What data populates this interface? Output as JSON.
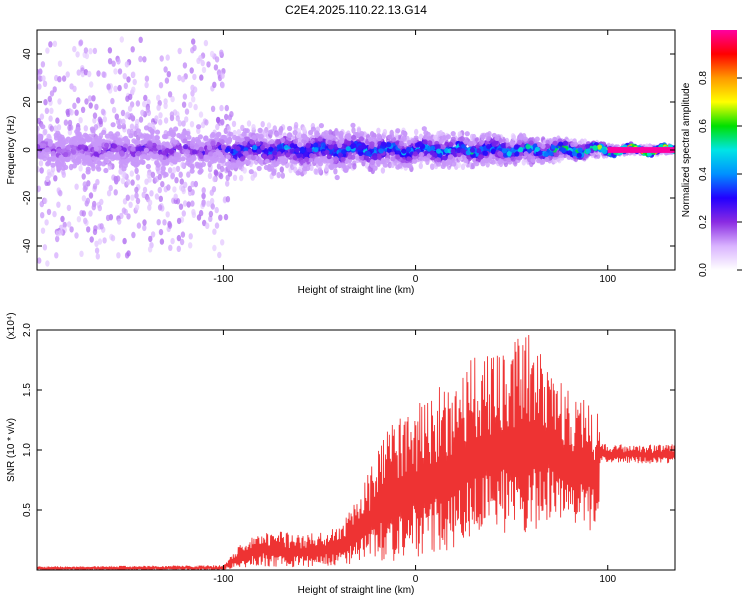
{
  "title": "C2E4.2025.110.22.13.G14",
  "chart_data": [
    {
      "type": "heatmap",
      "xlabel": "Height of straight line (km)",
      "ylabel": "Frequency (Hz)",
      "xlim": [
        -197,
        135
      ],
      "ylim": [
        -50,
        50
      ],
      "xticks": [
        -100,
        0,
        100
      ],
      "xtick_labels": [
        "-100",
        "0",
        "100"
      ],
      "yticks": [
        -40,
        -20,
        0,
        20,
        40
      ],
      "ytick_labels": [
        "-40",
        "-20",
        "0",
        "20",
        "40"
      ],
      "colorbar": {
        "label": "Normalized spectral amplitude",
        "range": [
          0,
          1
        ],
        "ticks": [
          0.0,
          0.2,
          0.4,
          0.6,
          0.8
        ],
        "tick_labels": [
          "0.0",
          "0.2",
          "0.4",
          "0.6",
          "0.8"
        ],
        "colors": [
          "#ffffff",
          "#d9b3ff",
          "#8a2be2",
          "#2200ff",
          "#0090ff",
          "#00e5e5",
          "#00e000",
          "#ffff00",
          "#ff9900",
          "#ff0000",
          "#ff00a0"
        ]
      },
      "profile": [
        {
          "x": -197,
          "spread_hz": 48,
          "core_amplitude": 0.25
        },
        {
          "x": -100,
          "spread_hz": 45,
          "core_amplitude": 0.3
        },
        {
          "x": -95,
          "spread_hz": 12,
          "core_amplitude": 0.45
        },
        {
          "x": -50,
          "spread_hz": 10,
          "core_amplitude": 0.5
        },
        {
          "x": 0,
          "spread_hz": 8,
          "core_amplitude": 0.55
        },
        {
          "x": 60,
          "spread_hz": 6,
          "core_amplitude": 0.6
        },
        {
          "x": 95,
          "spread_hz": 3,
          "core_amplitude": 0.8
        },
        {
          "x": 105,
          "spread_hz": 1.5,
          "core_amplitude": 1.0
        },
        {
          "x": 135,
          "spread_hz": 1.5,
          "core_amplitude": 1.0
        }
      ]
    },
    {
      "type": "line",
      "xlabel": "Height of straight line (km)",
      "ylabel": "SNR (10 * v/v)",
      "y_multiplier": "(x10⁴)",
      "xlim": [
        -197,
        135
      ],
      "ylim": [
        0,
        2.0
      ],
      "xticks": [
        -100,
        0,
        100
      ],
      "xtick_labels": [
        "-100",
        "0",
        "100"
      ],
      "yticks": [
        0.5,
        1.0,
        1.5,
        2.0
      ],
      "ytick_labels": [
        "0.5",
        "1.0",
        "1.5",
        "2.0"
      ],
      "color": "#ee3333",
      "envelope": [
        {
          "x": -197,
          "low": 0.0,
          "high": 0.03
        },
        {
          "x": -100,
          "low": 0.0,
          "high": 0.04
        },
        {
          "x": -90,
          "low": 0.02,
          "high": 0.25
        },
        {
          "x": -80,
          "low": 0.03,
          "high": 0.35
        },
        {
          "x": -60,
          "low": 0.02,
          "high": 0.3
        },
        {
          "x": -40,
          "low": 0.03,
          "high": 0.35
        },
        {
          "x": -30,
          "low": 0.05,
          "high": 0.6
        },
        {
          "x": -20,
          "low": 0.05,
          "high": 1.0
        },
        {
          "x": -10,
          "low": 0.05,
          "high": 1.3
        },
        {
          "x": 0,
          "low": 0.1,
          "high": 1.4
        },
        {
          "x": 20,
          "low": 0.15,
          "high": 1.6
        },
        {
          "x": 30,
          "low": 0.2,
          "high": 1.8
        },
        {
          "x": 50,
          "low": 0.3,
          "high": 1.9
        },
        {
          "x": 60,
          "low": 0.3,
          "high": 2.0
        },
        {
          "x": 70,
          "low": 0.4,
          "high": 1.7
        },
        {
          "x": 85,
          "low": 0.35,
          "high": 1.45
        },
        {
          "x": 95,
          "low": 0.3,
          "high": 1.4
        },
        {
          "x": 96,
          "low": 0.9,
          "high": 1.05
        },
        {
          "x": 135,
          "low": 0.88,
          "high": 1.05
        }
      ]
    }
  ]
}
